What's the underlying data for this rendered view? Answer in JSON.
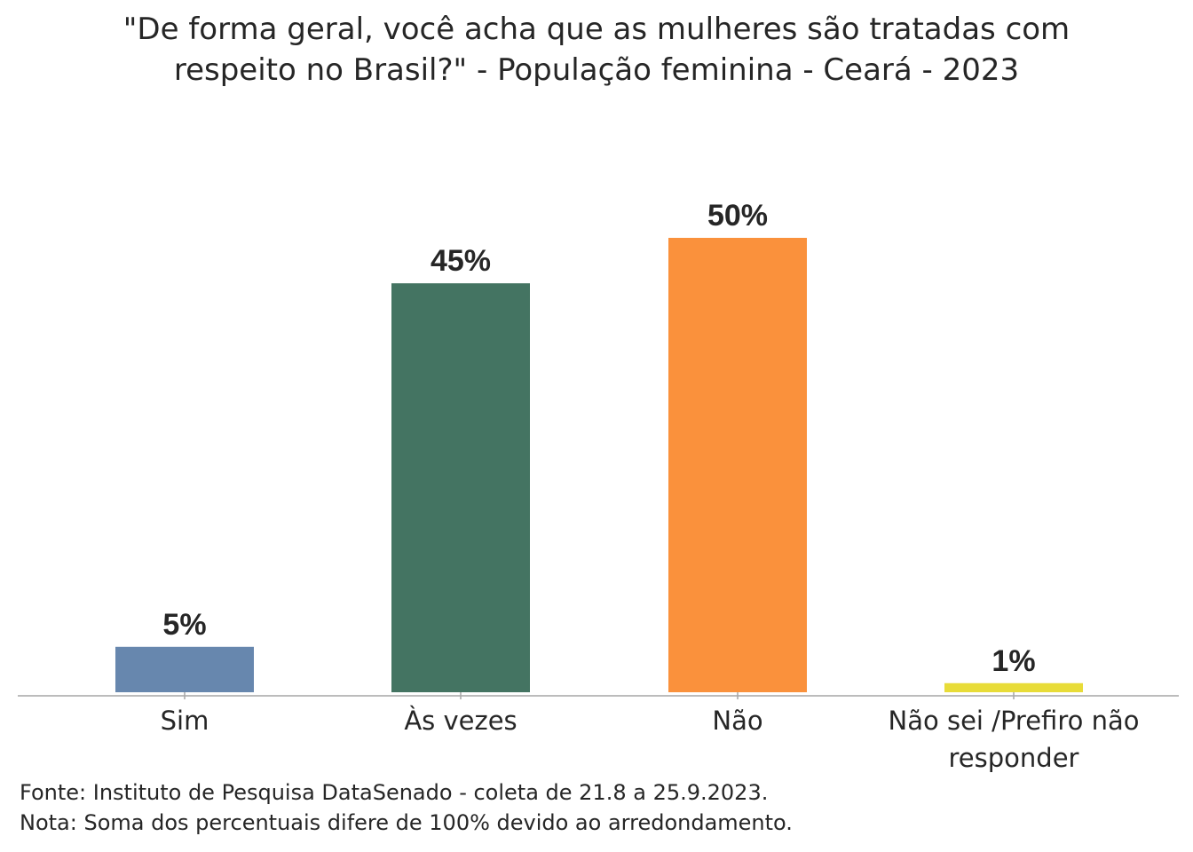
{
  "chart_data": {
    "type": "bar",
    "title": "\"De forma geral, você acha que as mulheres são tratadas com respeito no Brasil?\" - População feminina - Ceará - 2023",
    "title_lines": [
      "\"De forma geral, você acha que as mulheres são tratadas com",
      "respeito no Brasil?\" - População feminina - Ceará - 2023"
    ],
    "categories": [
      "Sim",
      "Às vezes",
      "Não",
      "Não sei /Prefiro não responder"
    ],
    "category_lines": [
      [
        "Sim"
      ],
      [
        "Às vezes"
      ],
      [
        "Não"
      ],
      [
        "Não sei /Prefiro não",
        "responder"
      ]
    ],
    "values": [
      5,
      45,
      50,
      1
    ],
    "data_labels": [
      "5%",
      "45%",
      "50%",
      "1%"
    ],
    "colors": [
      "#6787AE",
      "#447462",
      "#FA913C",
      "#E8DC38"
    ],
    "xlabel": "",
    "ylabel": "",
    "ylim": [
      0,
      50
    ],
    "grid": false,
    "legend": "none"
  },
  "footer": {
    "source": "Fonte: Instituto de Pesquisa DataSenado - coleta de 21.8 a 25.9.2023.",
    "note": "Nota: Soma dos percentuais difere de 100% devido ao arredondamento."
  }
}
